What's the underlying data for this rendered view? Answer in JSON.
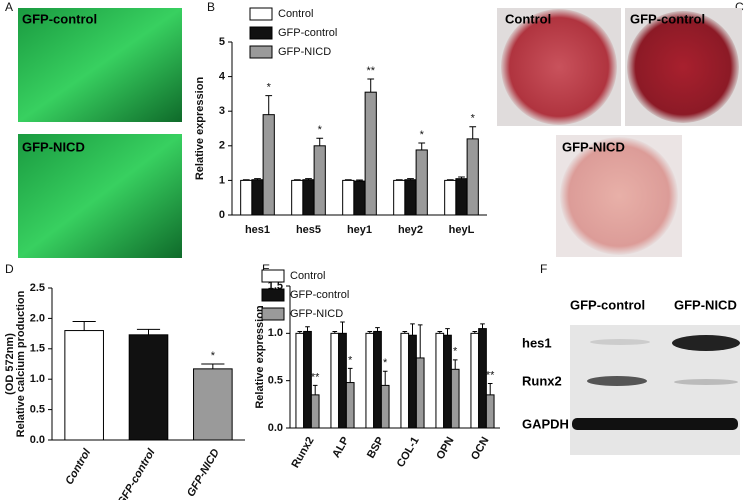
{
  "panel_labels": [
    "A",
    "B",
    "C",
    "D",
    "E",
    "F"
  ],
  "images": {
    "a": [
      "GFP-control",
      "GFP-NICD"
    ],
    "c": [
      "Control",
      "GFP-control",
      "GFP-NICD"
    ],
    "f": {
      "columns": [
        "GFP-control",
        "GFP-NICD"
      ],
      "rows": [
        "hes1",
        "Runx2",
        "GAPDH"
      ]
    }
  },
  "chart_data": [
    {
      "type": "grouped_bar",
      "ylabel": "Relative expression",
      "categories": [
        "hes1",
        "hes5",
        "hey1",
        "hey2",
        "heyL"
      ],
      "series": [
        {
          "name": "Control",
          "color": "#ffffff",
          "values": [
            1,
            1,
            1,
            1,
            1
          ],
          "errors": [
            0.02,
            0.02,
            0.02,
            0.02,
            0.02
          ]
        },
        {
          "name": "GFP-control",
          "color": "#111111",
          "values": [
            1.02,
            1.02,
            0.98,
            1.02,
            1.05
          ],
          "errors": [
            0.03,
            0.03,
            0.03,
            0.03,
            0.05
          ]
        },
        {
          "name": "GFP-NICD",
          "color": "#9a9a9a",
          "values": [
            2.9,
            2.0,
            3.55,
            1.88,
            2.2
          ],
          "errors": [
            0.55,
            0.22,
            0.38,
            0.2,
            0.35
          ]
        }
      ],
      "annotations": [
        "*",
        "*",
        "**",
        "*",
        "*"
      ],
      "ylim": [
        0,
        5
      ],
      "yticks": [
        0,
        1,
        2,
        3,
        4,
        5
      ],
      "legend": "top-left"
    },
    {
      "type": "bar",
      "ylabel": [
        "Relative calcium production",
        "(OD 572nm)"
      ],
      "categories": [
        "Control",
        "GFP-control",
        "GFP-NICD"
      ],
      "values": [
        1.8,
        1.73,
        1.17
      ],
      "errors": [
        0.15,
        0.09,
        0.08
      ],
      "colors": [
        "#ffffff",
        "#111111",
        "#9a9a9a"
      ],
      "annotations": [
        null,
        null,
        "*"
      ],
      "ylim": [
        0,
        2.5
      ],
      "yticks": [
        {
          "value": 0,
          "label": "0.0"
        },
        0.5,
        {
          "value": 1,
          "label": "1.0"
        },
        1.5,
        {
          "value": 2,
          "label": "2.0"
        },
        2.5
      ]
    },
    {
      "type": "grouped_bar",
      "ylabel": "Relative expression",
      "categories": [
        "Runx2",
        "ALP",
        "BSP",
        "COL-1",
        "OPN",
        "OCN"
      ],
      "series": [
        {
          "name": "Control",
          "color": "#ffffff",
          "values": [
            1,
            1,
            1,
            1,
            1,
            1
          ],
          "errors": [
            0.02,
            0.02,
            0.02,
            0.02,
            0.02,
            0.02
          ]
        },
        {
          "name": "GFP-control",
          "color": "#111111",
          "values": [
            1.02,
            1.0,
            1.02,
            0.98,
            0.98,
            1.05
          ],
          "errors": [
            0.05,
            0.12,
            0.04,
            0.12,
            0.07,
            0.05
          ]
        },
        {
          "name": "GFP-NICD",
          "color": "#9a9a9a",
          "values": [
            0.35,
            0.48,
            0.45,
            0.74,
            0.62,
            0.35
          ],
          "errors": [
            0.1,
            0.15,
            0.15,
            0.35,
            0.1,
            0.12
          ]
        }
      ],
      "annotations": [
        "**",
        "*",
        "*",
        null,
        "*",
        "**"
      ],
      "ylim": [
        0,
        1.5
      ],
      "yticks": [
        {
          "value": 0,
          "label": "0.0"
        },
        0.5,
        {
          "value": 1,
          "label": "1.0"
        },
        1.5
      ],
      "legend": "top-left"
    }
  ]
}
